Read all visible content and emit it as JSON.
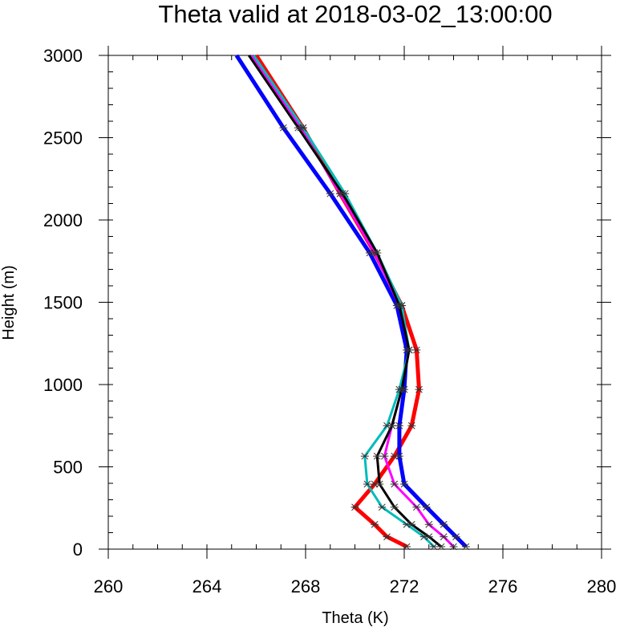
{
  "chart_data": {
    "type": "line",
    "title": "Theta valid at 2018-03-02_13:00:00",
    "xlabel": "Theta (K)",
    "ylabel": "Height (m)",
    "xlim": [
      260,
      280
    ],
    "ylim": [
      0,
      3000
    ],
    "xticks": [
      "260",
      "264",
      "268",
      "272",
      "276",
      "280"
    ],
    "yticks": [
      "0",
      "500",
      "1000",
      "1500",
      "2000",
      "2500",
      "3000"
    ],
    "grid": false,
    "legend": "none",
    "heights": [
      15,
      75,
      150,
      255,
      395,
      565,
      750,
      970,
      1210,
      1480,
      1800,
      2160,
      2560,
      3000
    ],
    "series": [
      {
        "color": "#ff0000",
        "width": 5,
        "x": [
          272.1,
          271.3,
          270.8,
          270.0,
          270.8,
          271.6,
          272.3,
          272.6,
          272.5,
          271.9,
          270.8,
          269.4,
          267.9,
          266.0
        ]
      },
      {
        "color": "#0000ff",
        "width": 5,
        "x": [
          274.5,
          274.1,
          273.6,
          272.9,
          272.0,
          271.8,
          271.8,
          272.0,
          272.1,
          271.7,
          270.6,
          269.0,
          267.1,
          265.2
        ]
      },
      {
        "color": "#ff00ff",
        "width": 3,
        "x": [
          274.0,
          273.6,
          273.0,
          272.5,
          271.6,
          271.2,
          271.5,
          271.9,
          272.2,
          271.8,
          270.8,
          269.4,
          267.8,
          265.8
        ]
      },
      {
        "color": "#00bbbb",
        "width": 3,
        "x": [
          273.2,
          272.8,
          272.1,
          271.1,
          270.5,
          270.4,
          271.3,
          271.8,
          272.2,
          271.9,
          270.9,
          269.6,
          267.9,
          265.9
        ]
      },
      {
        "color": "#000000",
        "width": 3,
        "x": [
          273.5,
          273.0,
          272.3,
          271.6,
          271.0,
          270.9,
          271.5,
          271.9,
          272.2,
          271.8,
          270.9,
          269.5,
          267.7,
          265.7
        ]
      }
    ]
  }
}
